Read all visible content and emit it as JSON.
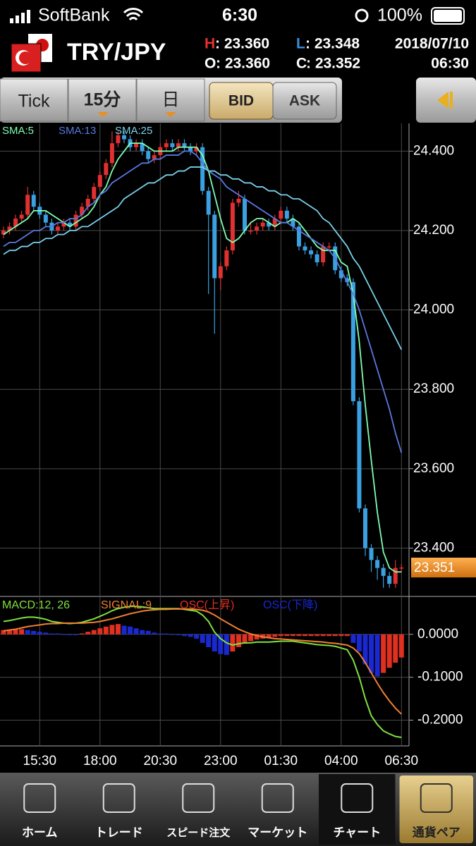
{
  "status_bar": {
    "carrier": "SoftBank",
    "time": "6:30",
    "battery": "100%"
  },
  "header": {
    "pair": "TRY/JPY",
    "stats": [
      {
        "key": "H",
        "text": ": 23.360"
      },
      {
        "key": "L",
        "text": ": 23.348"
      },
      {
        "key": "O",
        "text": ": 23.360"
      },
      {
        "key": "C",
        "text": ": 23.352"
      }
    ],
    "date": "2018/07/10",
    "time": "06:30"
  },
  "toolbar": {
    "tabs": [
      "Tick",
      "15分",
      "日"
    ],
    "price_side": [
      "BID",
      "ASK"
    ]
  },
  "tab_bar": [
    "ホーム",
    "トレード",
    "スピード注文",
    "マーケット",
    "チャート",
    "通貨ペア"
  ],
  "chart_data": [
    {
      "type": "candlestick",
      "ylim": [
        23.28,
        24.47
      ],
      "yticks": [
        {
          "value": 24.4,
          "label": "24.400"
        },
        {
          "value": 24.2,
          "label": "24.200"
        },
        {
          "value": 24.0,
          "label": "24.000"
        },
        {
          "value": 23.8,
          "label": "23.800"
        },
        {
          "value": 23.6,
          "label": "23.600"
        },
        {
          "value": 23.4,
          "label": "23.400"
        }
      ],
      "grid": true,
      "up_color": "#e03030",
      "down_color": "#3aa0e0",
      "categories": [
        null,
        null,
        null,
        null,
        null,
        null,
        "15:30",
        null,
        null,
        null,
        null,
        null,
        null,
        null,
        null,
        null,
        "18:00",
        null,
        null,
        null,
        null,
        null,
        null,
        null,
        null,
        null,
        "20:30",
        null,
        null,
        null,
        null,
        null,
        null,
        null,
        null,
        null,
        "23:00",
        null,
        null,
        null,
        null,
        null,
        null,
        null,
        null,
        null,
        "01:30",
        null,
        null,
        null,
        null,
        null,
        null,
        null,
        null,
        null,
        "04:00",
        null,
        null,
        null,
        null,
        null,
        null,
        null,
        null,
        null,
        "06:30"
      ],
      "open": [
        24.19,
        24.2,
        24.21,
        24.23,
        24.24,
        24.29,
        24.26,
        24.24,
        24.22,
        24.2,
        24.21,
        24.22,
        24.21,
        24.24,
        24.26,
        24.28,
        24.31,
        24.34,
        24.37,
        24.42,
        24.44,
        24.43,
        24.41,
        24.42,
        24.4,
        24.38,
        24.39,
        24.41,
        24.42,
        24.41,
        24.42,
        24.41,
        24.4,
        24.41,
        24.3,
        24.24,
        24.08,
        24.11,
        24.15,
        24.27,
        24.28,
        24.2,
        24.2,
        24.21,
        24.22,
        24.21,
        24.23,
        24.25,
        24.23,
        24.21,
        24.16,
        24.15,
        24.14,
        24.12,
        24.16,
        24.16,
        24.1,
        24.08,
        24.07,
        23.77,
        23.5,
        23.4,
        23.37,
        23.35,
        23.33,
        23.31,
        23.35
      ],
      "high": [
        24.21,
        24.22,
        24.24,
        24.25,
        24.31,
        24.3,
        24.27,
        24.25,
        24.23,
        24.22,
        24.23,
        24.23,
        24.25,
        24.27,
        24.29,
        24.32,
        24.35,
        24.38,
        24.45,
        24.45,
        24.45,
        24.44,
        24.43,
        24.43,
        24.41,
        24.4,
        24.42,
        24.43,
        24.43,
        24.43,
        24.43,
        24.42,
        24.42,
        24.42,
        24.31,
        24.25,
        24.12,
        24.16,
        24.28,
        24.3,
        24.29,
        24.22,
        24.22,
        24.23,
        24.23,
        24.24,
        24.26,
        24.26,
        24.24,
        24.22,
        24.17,
        24.16,
        24.15,
        24.17,
        24.17,
        24.17,
        24.11,
        24.09,
        24.08,
        23.78,
        23.51,
        23.41,
        23.38,
        23.36,
        23.34,
        23.37,
        23.36
      ],
      "low": [
        24.18,
        24.19,
        24.2,
        24.22,
        24.23,
        24.25,
        24.23,
        24.21,
        24.19,
        24.19,
        24.2,
        24.2,
        24.2,
        24.23,
        24.25,
        24.27,
        24.3,
        24.33,
        24.36,
        24.41,
        24.42,
        24.4,
        24.4,
        24.39,
        24.37,
        24.37,
        24.38,
        24.4,
        24.4,
        24.4,
        24.4,
        24.39,
        24.39,
        24.29,
        24.04,
        23.94,
        24.05,
        24.1,
        24.14,
        24.26,
        24.19,
        24.19,
        24.19,
        24.2,
        24.2,
        24.2,
        24.22,
        24.22,
        24.2,
        24.15,
        24.14,
        24.13,
        24.11,
        24.11,
        24.15,
        24.09,
        24.07,
        24.06,
        23.76,
        23.49,
        23.38,
        23.34,
        23.32,
        23.3,
        23.3,
        23.3,
        23.34
      ],
      "close": [
        24.2,
        24.21,
        24.23,
        24.24,
        24.29,
        24.26,
        24.24,
        24.22,
        24.2,
        24.21,
        24.22,
        24.21,
        24.24,
        24.26,
        24.28,
        24.31,
        24.34,
        24.37,
        24.42,
        24.44,
        24.43,
        24.41,
        24.42,
        24.4,
        24.38,
        24.39,
        24.41,
        24.42,
        24.41,
        24.42,
        24.41,
        24.4,
        24.41,
        24.3,
        24.24,
        24.08,
        24.11,
        24.15,
        24.27,
        24.28,
        24.2,
        24.2,
        24.21,
        24.22,
        24.21,
        24.23,
        24.25,
        24.23,
        24.21,
        24.16,
        24.15,
        24.14,
        24.12,
        24.16,
        24.16,
        24.1,
        24.08,
        24.07,
        23.77,
        23.5,
        23.4,
        23.37,
        23.35,
        23.33,
        23.31,
        23.35,
        23.351
      ],
      "series": [
        {
          "name": "SMA:5",
          "color": "#7fffb0",
          "values": [
            24.19,
            24.2,
            24.21,
            24.22,
            24.23,
            24.25,
            24.25,
            24.25,
            24.24,
            24.23,
            24.22,
            24.21,
            24.22,
            24.23,
            24.24,
            24.26,
            24.29,
            24.31,
            24.35,
            24.38,
            24.4,
            24.42,
            24.42,
            24.42,
            24.41,
            24.4,
            24.4,
            24.4,
            24.4,
            24.41,
            24.41,
            24.41,
            24.41,
            24.39,
            24.35,
            24.29,
            24.23,
            24.18,
            24.17,
            24.18,
            24.2,
            24.22,
            24.23,
            24.23,
            24.22,
            24.21,
            24.22,
            24.22,
            24.23,
            24.22,
            24.2,
            24.18,
            24.16,
            24.15,
            24.15,
            24.15,
            24.12,
            24.11,
            24.04,
            23.92,
            23.76,
            23.62,
            23.49,
            23.39,
            23.35,
            23.34,
            23.34
          ]
        },
        {
          "name": "SMA:13",
          "color": "#5a78e0",
          "values": [
            24.16,
            24.17,
            24.17,
            24.18,
            24.19,
            24.2,
            24.2,
            24.21,
            24.21,
            24.22,
            24.22,
            24.23,
            24.23,
            24.24,
            24.26,
            24.27,
            24.29,
            24.3,
            24.32,
            24.33,
            24.34,
            24.35,
            24.36,
            24.37,
            24.37,
            24.38,
            24.38,
            24.39,
            24.39,
            24.39,
            24.4,
            24.4,
            24.39,
            24.37,
            24.35,
            24.34,
            24.33,
            24.31,
            24.3,
            24.29,
            24.28,
            24.27,
            24.26,
            24.25,
            24.24,
            24.23,
            24.22,
            24.22,
            24.21,
            24.2,
            24.19,
            24.18,
            24.17,
            24.16,
            24.15,
            24.13,
            24.1,
            24.07,
            24.04,
            24.0,
            23.95,
            23.9,
            23.85,
            23.8,
            23.75,
            23.69,
            23.64
          ]
        },
        {
          "name": "SMA:25",
          "color": "#7ad0e8",
          "values": [
            24.14,
            24.15,
            24.15,
            24.16,
            24.16,
            24.17,
            24.17,
            24.18,
            24.18,
            24.19,
            24.19,
            24.2,
            24.2,
            24.21,
            24.21,
            24.22,
            24.23,
            24.24,
            24.25,
            24.26,
            24.28,
            24.29,
            24.3,
            24.31,
            24.32,
            24.32,
            24.33,
            24.34,
            24.34,
            24.35,
            24.35,
            24.36,
            24.36,
            24.36,
            24.35,
            24.35,
            24.34,
            24.34,
            24.33,
            24.33,
            24.32,
            24.32,
            24.31,
            24.31,
            24.3,
            24.3,
            24.29,
            24.29,
            24.28,
            24.28,
            24.27,
            24.26,
            24.25,
            24.23,
            24.22,
            24.2,
            24.18,
            24.16,
            24.13,
            24.11,
            24.08,
            24.05,
            24.02,
            23.99,
            23.96,
            23.93,
            23.9
          ]
        }
      ],
      "last_price": {
        "value": 23.351,
        "label": "23.351"
      }
    },
    {
      "type": "line",
      "ylim": [
        -0.26,
        0.085
      ],
      "yticks": [
        {
          "value": 0,
          "label": "0.0000"
        },
        {
          "value": -0.1,
          "label": "-0.1000"
        },
        {
          "value": -0.2,
          "label": "-0.2000"
        }
      ],
      "grid": true,
      "series": [
        {
          "name": "MACD:12, 26",
          "color": "#7fe040",
          "values": [
            0.03,
            0.032,
            0.035,
            0.038,
            0.04,
            0.04,
            0.038,
            0.035,
            0.03,
            0.028,
            0.026,
            0.025,
            0.026,
            0.028,
            0.032,
            0.036,
            0.042,
            0.048,
            0.055,
            0.06,
            0.063,
            0.065,
            0.065,
            0.064,
            0.062,
            0.06,
            0.06,
            0.06,
            0.06,
            0.06,
            0.058,
            0.056,
            0.054,
            0.045,
            0.03,
            0.005,
            -0.01,
            -0.02,
            -0.025,
            -0.022,
            -0.02,
            -0.02,
            -0.018,
            -0.018,
            -0.018,
            -0.017,
            -0.016,
            -0.016,
            -0.016,
            -0.018,
            -0.02,
            -0.022,
            -0.024,
            -0.025,
            -0.026,
            -0.028,
            -0.032,
            -0.036,
            -0.06,
            -0.1,
            -0.15,
            -0.19,
            -0.21,
            -0.225,
            -0.232,
            -0.238,
            -0.24
          ]
        },
        {
          "name": "SIGNAL:9",
          "color": "#f08030",
          "values": [
            0.008,
            0.01,
            0.012,
            0.015,
            0.018,
            0.02,
            0.022,
            0.024,
            0.025,
            0.025,
            0.026,
            0.026,
            0.026,
            0.026,
            0.027,
            0.028,
            0.03,
            0.033,
            0.036,
            0.04,
            0.044,
            0.048,
            0.051,
            0.054,
            0.056,
            0.057,
            0.058,
            0.058,
            0.059,
            0.059,
            0.059,
            0.059,
            0.058,
            0.056,
            0.052,
            0.045,
            0.036,
            0.028,
            0.02,
            0.012,
            0.006,
            0.001,
            -0.003,
            -0.006,
            -0.008,
            -0.01,
            -0.011,
            -0.012,
            -0.013,
            -0.014,
            -0.015,
            -0.016,
            -0.017,
            -0.018,
            -0.02,
            -0.021,
            -0.023,
            -0.025,
            -0.032,
            -0.045,
            -0.066,
            -0.09,
            -0.114,
            -0.136,
            -0.155,
            -0.172,
            -0.186
          ]
        }
      ],
      "bars": [
        {
          "name": "OSC(上昇)",
          "color": "#e03020",
          "values": [
            0.01,
            0.01,
            0.012,
            0.012,
            null,
            null,
            null,
            null,
            null,
            null,
            null,
            null,
            null,
            0.002,
            0.006,
            0.01,
            0.014,
            0.018,
            0.022,
            0.024,
            null,
            null,
            null,
            null,
            null,
            null,
            null,
            null,
            null,
            null,
            null,
            null,
            null,
            null,
            null,
            null,
            null,
            null,
            -0.04,
            -0.03,
            -0.022,
            -0.016,
            -0.012,
            -0.01,
            -0.008,
            -0.006,
            -0.004,
            -0.004,
            -0.004,
            -0.004,
            -0.004,
            -0.004,
            -0.004,
            -0.004,
            -0.004,
            -0.004,
            -0.004,
            -0.004,
            null,
            null,
            null,
            null,
            null,
            -0.09,
            -0.078,
            -0.066,
            -0.054
          ]
        },
        {
          "name": "OSC(下降)",
          "color": "#1a28d0",
          "values": [
            null,
            null,
            null,
            null,
            0.01,
            0.008,
            0.006,
            0.004,
            0.002,
            0.002,
            0.0,
            -0.002,
            -0.002,
            null,
            null,
            null,
            null,
            null,
            null,
            null,
            0.02,
            0.018,
            0.014,
            0.01,
            0.008,
            0.004,
            0.002,
            0.002,
            0.0,
            -0.002,
            -0.004,
            -0.006,
            -0.01,
            -0.02,
            -0.03,
            -0.04,
            -0.046,
            -0.048,
            null,
            null,
            null,
            null,
            null,
            null,
            null,
            null,
            null,
            null,
            null,
            null,
            null,
            null,
            null,
            null,
            null,
            null,
            null,
            null,
            -0.02,
            -0.04,
            -0.07,
            -0.09,
            -0.098,
            null,
            null,
            null,
            null
          ]
        }
      ]
    }
  ]
}
